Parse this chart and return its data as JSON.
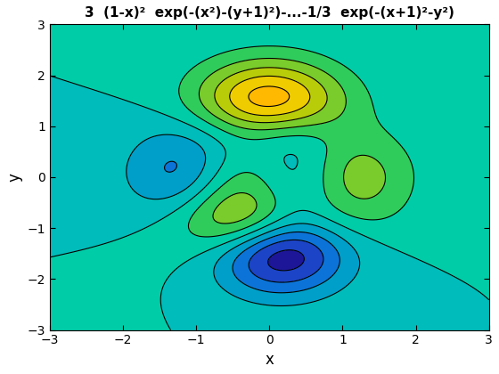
{
  "title": "3  (1-x)²  exp(-(x²)-(y+1)²)-...-1/3  exp(-(x+1)²-y²)",
  "xlabel": "x",
  "ylabel": "y",
  "xlim": [
    -3,
    3
  ],
  "ylim": [
    -3,
    3
  ],
  "xticks": [
    -3,
    -2,
    -1,
    0,
    1,
    2,
    3
  ],
  "yticks": [
    -3,
    -2,
    -1,
    0,
    1,
    2,
    3
  ],
  "n_levels": 10,
  "figsize": [
    5.6,
    4.2
  ],
  "dpi": 100,
  "cmap_colors": [
    "#1a006e",
    "#2222bb",
    "#3366dd",
    "#00aacc",
    "#00cccc",
    "#00ddaa",
    "#44cc55",
    "#99cc22",
    "#ddcc00",
    "#ffaa00",
    "#ff8800"
  ]
}
